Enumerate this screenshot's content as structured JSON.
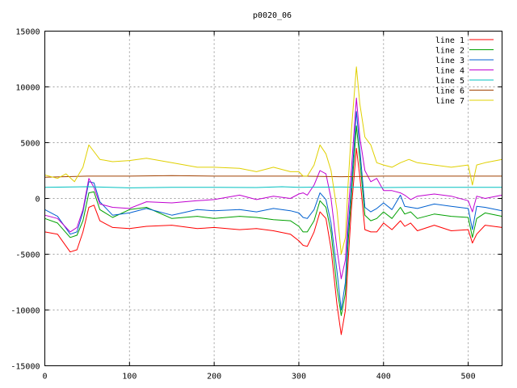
{
  "chart_data": {
    "type": "line",
    "title": "p0020_06",
    "xlabel": "",
    "ylabel": "",
    "xlim": [
      0,
      540
    ],
    "ylim": [
      -15000,
      15000
    ],
    "xticks": [
      0,
      100,
      200,
      300,
      400,
      500
    ],
    "yticks": [
      -15000,
      -10000,
      -5000,
      0,
      5000,
      10000,
      15000
    ],
    "grid": true,
    "legend_position": "top-right",
    "series": [
      {
        "name": "line 1",
        "color": "#ff0000",
        "x": [
          0,
          15,
          30,
          38,
          45,
          52,
          58,
          65,
          80,
          100,
          120,
          150,
          180,
          200,
          230,
          250,
          270,
          290,
          300,
          305,
          310,
          318,
          325,
          332,
          338,
          345,
          350,
          355,
          358,
          362,
          368,
          372,
          378,
          385,
          392,
          400,
          410,
          420,
          425,
          432,
          440,
          460,
          480,
          500,
          505,
          510,
          520,
          540
        ],
        "y": [
          -3000,
          -3200,
          -4800,
          -4600,
          -3000,
          -800,
          -600,
          -2000,
          -2600,
          -2700,
          -2500,
          -2400,
          -2700,
          -2600,
          -2800,
          -2700,
          -2900,
          -3200,
          -3800,
          -4200,
          -4300,
          -3000,
          -1200,
          -1800,
          -4500,
          -9500,
          -12200,
          -10000,
          -6000,
          -1000,
          4500,
          2000,
          -2800,
          -3000,
          -3000,
          -2200,
          -2800,
          -2000,
          -2500,
          -2200,
          -2900,
          -2400,
          -2900,
          -2800,
          -4000,
          -3200,
          -2400,
          -2600
        ]
      },
      {
        "name": "line 2",
        "color": "#00a000",
        "x": [
          0,
          15,
          30,
          38,
          45,
          52,
          58,
          65,
          80,
          100,
          120,
          150,
          180,
          200,
          230,
          250,
          270,
          290,
          300,
          305,
          310,
          318,
          325,
          332,
          338,
          345,
          350,
          355,
          358,
          362,
          368,
          372,
          378,
          385,
          392,
          400,
          410,
          420,
          425,
          432,
          440,
          460,
          480,
          500,
          505,
          510,
          520,
          540
        ],
        "y": [
          -1800,
          -2200,
          -3500,
          -3300,
          -2000,
          500,
          600,
          -1000,
          -1700,
          -1000,
          -800,
          -1800,
          -1600,
          -1800,
          -1600,
          -1700,
          -1900,
          -2000,
          -2500,
          -3000,
          -3000,
          -2000,
          -200,
          -800,
          -3000,
          -8000,
          -10500,
          -8500,
          -4200,
          200,
          6500,
          3500,
          -1500,
          -2000,
          -1800,
          -1200,
          -1800,
          -800,
          -1400,
          -1200,
          -1800,
          -1400,
          -1600,
          -1700,
          -3500,
          -1800,
          -1300,
          -1600
        ]
      },
      {
        "name": "line 3",
        "color": "#0060d0",
        "x": [
          0,
          15,
          30,
          38,
          45,
          52,
          58,
          65,
          80,
          100,
          120,
          150,
          180,
          200,
          230,
          250,
          270,
          290,
          300,
          305,
          310,
          318,
          325,
          332,
          338,
          345,
          350,
          355,
          358,
          362,
          368,
          372,
          378,
          385,
          392,
          400,
          410,
          420,
          425,
          432,
          440,
          460,
          480,
          500,
          505,
          510,
          520,
          540
        ],
        "y": [
          -1000,
          -1600,
          -3200,
          -3000,
          -1200,
          1500,
          1400,
          -300,
          -1500,
          -1300,
          -900,
          -1500,
          -1000,
          -1100,
          -1000,
          -1200,
          -900,
          -1100,
          -1300,
          -1700,
          -1800,
          -1000,
          500,
          -100,
          -2200,
          -6500,
          -10000,
          -7500,
          -3000,
          1000,
          7800,
          4500,
          -800,
          -1200,
          -900,
          -400,
          -1000,
          300,
          -700,
          -800,
          -900,
          -500,
          -700,
          -900,
          -2800,
          -700,
          -800,
          -1100
        ]
      },
      {
        "name": "line 4",
        "color": "#c000d0",
        "x": [
          0,
          15,
          30,
          38,
          45,
          52,
          58,
          65,
          80,
          100,
          120,
          150,
          180,
          200,
          230,
          250,
          270,
          290,
          300,
          305,
          310,
          318,
          325,
          332,
          338,
          345,
          350,
          355,
          358,
          362,
          368,
          372,
          378,
          385,
          392,
          400,
          410,
          420,
          425,
          432,
          440,
          460,
          480,
          500,
          505,
          510,
          520,
          540
        ],
        "y": [
          -1500,
          -1800,
          -3000,
          -2600,
          -1000,
          1800,
          1000,
          -500,
          -800,
          -900,
          -300,
          -400,
          -200,
          -100,
          300,
          -100,
          200,
          0,
          400,
          500,
          300,
          1200,
          2500,
          2200,
          0,
          -4500,
          -7200,
          -5500,
          -1500,
          2500,
          9000,
          5500,
          2500,
          1500,
          1800,
          700,
          700,
          500,
          300,
          -100,
          200,
          400,
          200,
          -200,
          -1200,
          200,
          0,
          300
        ]
      },
      {
        "name": "line 5",
        "color": "#00c0c0",
        "x": [
          0,
          50,
          100,
          150,
          200,
          250,
          280,
          300,
          350,
          400,
          450,
          500,
          540
        ],
        "y": [
          1000,
          1050,
          950,
          1000,
          1000,
          980,
          1050,
          1000,
          1020,
          980,
          1000,
          1000,
          1000
        ]
      },
      {
        "name": "line 6",
        "color": "#a04000",
        "x": [
          0,
          50,
          100,
          150,
          200,
          250,
          300,
          350,
          400,
          450,
          500,
          540
        ],
        "y": [
          1900,
          2000,
          2000,
          2050,
          2000,
          2000,
          2000,
          1950,
          2000,
          2000,
          2000,
          2000
        ]
      },
      {
        "name": "line 7",
        "color": "#e0d000",
        "x": [
          0,
          15,
          25,
          35,
          45,
          52,
          58,
          65,
          80,
          100,
          120,
          150,
          180,
          200,
          230,
          250,
          270,
          290,
          300,
          305,
          310,
          318,
          325,
          332,
          338,
          345,
          350,
          355,
          358,
          362,
          368,
          372,
          378,
          385,
          392,
          400,
          410,
          420,
          430,
          440,
          460,
          480,
          500,
          505,
          510,
          520,
          540
        ],
        "y": [
          2100,
          1800,
          2200,
          1500,
          2800,
          4800,
          4200,
          3500,
          3300,
          3400,
          3600,
          3200,
          2800,
          2800,
          2700,
          2400,
          2800,
          2400,
          2400,
          2000,
          2000,
          3000,
          4800,
          4000,
          2500,
          -1000,
          -5000,
          -3500,
          1000,
          6000,
          11800,
          8500,
          5500,
          4800,
          3200,
          3000,
          2800,
          3200,
          3500,
          3200,
          3000,
          2800,
          3000,
          1200,
          3000,
          3200,
          3500
        ]
      }
    ]
  }
}
